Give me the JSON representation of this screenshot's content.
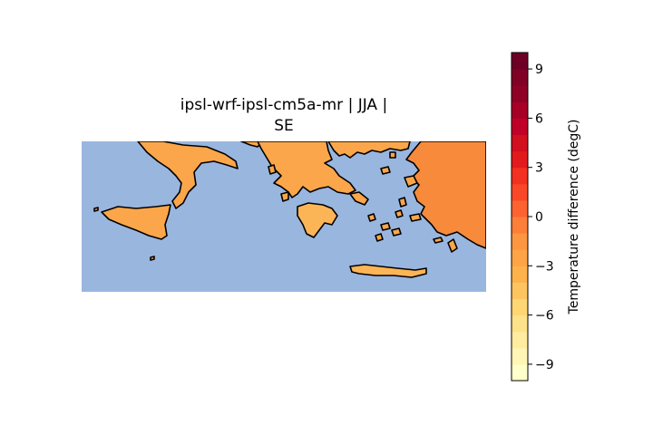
{
  "title": {
    "line1": "ipsl-wrf-ipsl-cm5a-mr | JJA |",
    "line2": "SE"
  },
  "colorbar": {
    "label": "Temperature difference (degC)",
    "colormap": "YlOrRd",
    "range": [
      -10,
      10
    ],
    "levels": 20,
    "ticks": [
      {
        "value": 9,
        "text": "9"
      },
      {
        "value": 6,
        "text": "6"
      },
      {
        "value": 3,
        "text": "3"
      },
      {
        "value": 0,
        "text": "0"
      },
      {
        "value": -3,
        "text": "−3"
      },
      {
        "value": -6,
        "text": "−6"
      },
      {
        "value": -9,
        "text": "−9"
      }
    ],
    "colors": [
      "#ffffcc",
      "#fff5b5",
      "#ffec9f",
      "#fee289",
      "#fed673",
      "#fec45f",
      "#feb24c",
      "#fea446",
      "#fd9640",
      "#fd7e38",
      "#fc6330",
      "#f94828",
      "#f23121",
      "#e31a1c",
      "#d10f1f",
      "#c00026",
      "#a70026",
      "#8f0026",
      "#800026",
      "#6e0026"
    ]
  },
  "map": {
    "region": "SE (South-East Europe: Italy, Sicily, Greece, Aegean, Crete, western Turkey)",
    "season": "JJA",
    "sea_color": "#99b6df",
    "coast_color": "#000000",
    "land_fill_typical": "#fba64a",
    "land_fill_dark": "#f88a3b",
    "land_fill_light": "#fcb556"
  }
}
